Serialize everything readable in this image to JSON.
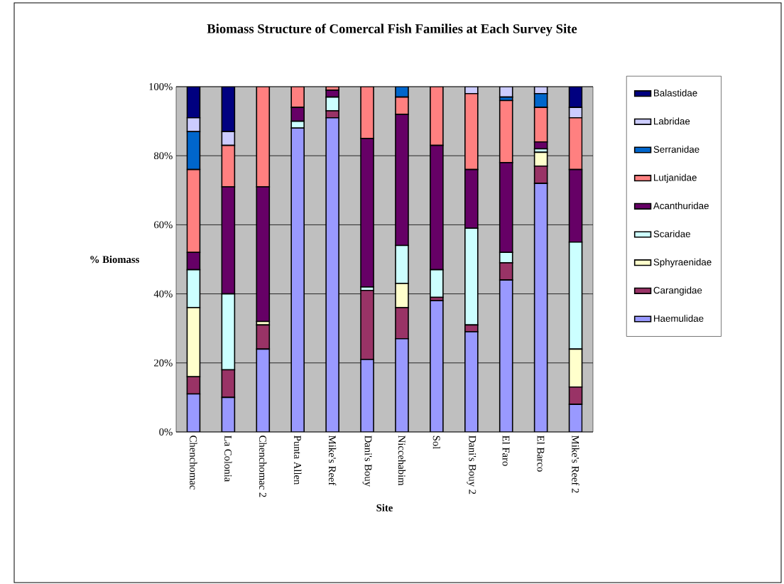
{
  "chart_data": {
    "type": "bar",
    "stacked": true,
    "title": "Biomass Structure of Comercal Fish Families at Each Survey Site",
    "xlabel": "Site",
    "ylabel": "% Biomass",
    "categories": [
      "Chenchomac",
      "La Colonia",
      "Chenchomac 2",
      "Punta Allen",
      "Mike's Reef",
      "Dani's Bouy",
      "Niccehabim",
      "Sol",
      "Dani's Bouy 2",
      "El Faro",
      "El Barco",
      "Mike's Reef 2"
    ],
    "series": [
      {
        "name": "Haemulidae",
        "color": "#9999ff",
        "values": [
          11,
          10,
          24,
          88,
          91,
          21,
          27,
          38,
          29,
          44,
          72,
          8
        ]
      },
      {
        "name": "Carangidae",
        "color": "#993366",
        "values": [
          5,
          8,
          7,
          0,
          2,
          20,
          9,
          1,
          2,
          5,
          5,
          5
        ]
      },
      {
        "name": "Sphyraenidae",
        "color": "#ffffcc",
        "values": [
          20,
          0,
          1,
          0,
          0,
          0,
          7,
          0,
          0,
          0,
          4,
          11
        ]
      },
      {
        "name": "Scaridae",
        "color": "#ccffff",
        "values": [
          11,
          22,
          0,
          2,
          4,
          1,
          11,
          8,
          28,
          3,
          1,
          31
        ]
      },
      {
        "name": "Acanthuridae",
        "color": "#660066",
        "values": [
          5,
          31,
          39,
          4,
          2,
          43,
          38,
          36,
          17,
          26,
          2,
          21
        ]
      },
      {
        "name": "Lutjanidae",
        "color": "#ff8080",
        "values": [
          24,
          12,
          29,
          6,
          1,
          15,
          5,
          17,
          22,
          18,
          10,
          15
        ]
      },
      {
        "name": "Serranidae",
        "color": "#0066cc",
        "values": [
          11,
          0,
          0,
          0,
          0,
          0,
          3,
          0,
          0,
          1,
          4,
          0
        ]
      },
      {
        "name": "Labridae",
        "color": "#ccccff",
        "values": [
          4,
          4,
          0,
          0,
          0,
          0,
          0,
          0,
          2,
          3,
          2,
          3
        ]
      },
      {
        "name": "Balastidae",
        "color": "#000080",
        "values": [
          9,
          13,
          0,
          0,
          0,
          0,
          0,
          0,
          0,
          0,
          0,
          6
        ]
      }
    ],
    "ylim": [
      0,
      100
    ],
    "yticks": [
      {
        "value": 0,
        "label": "0%"
      },
      {
        "value": 20,
        "label": "20%"
      },
      {
        "value": 40,
        "label": "40%"
      },
      {
        "value": 60,
        "label": "60%"
      },
      {
        "value": 80,
        "label": "80%"
      },
      {
        "value": 100,
        "label": "100%"
      }
    ],
    "grid": "y",
    "legend": "right"
  }
}
